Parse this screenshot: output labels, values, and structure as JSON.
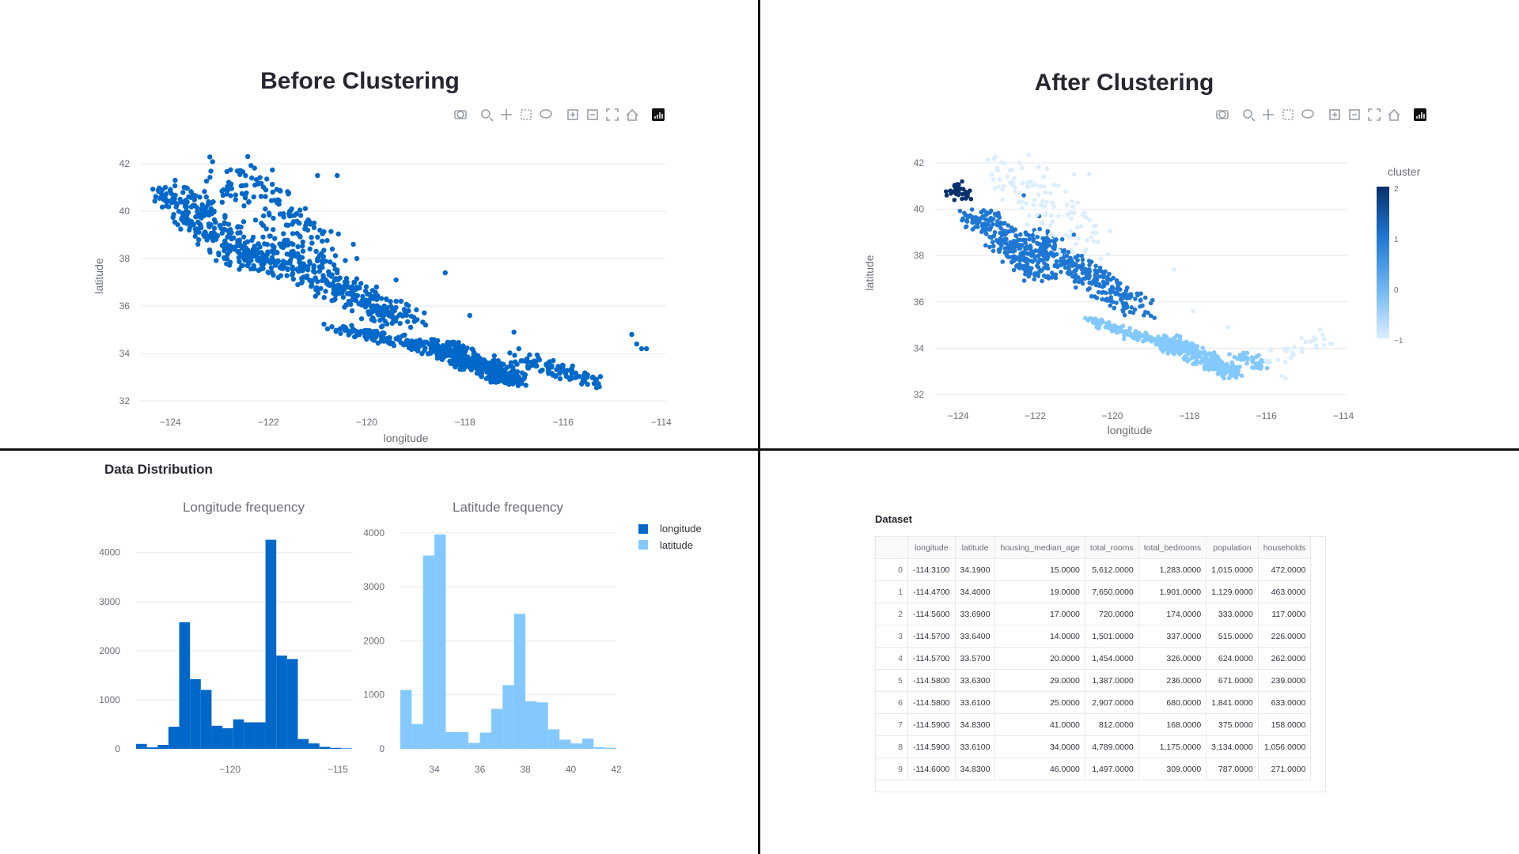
{
  "colors": {
    "primary": "#0068c9",
    "light": "#83c9ff",
    "dark": "#08306b",
    "mid": "#1f77d4"
  },
  "toolbar": {
    "icons": [
      "camera-icon",
      "zoom-icon",
      "pan-icon",
      "box-select-icon",
      "lasso-select-icon",
      "zoom-in-icon",
      "zoom-out-icon",
      "autoscale-icon",
      "reset-axes-icon",
      "plotly-logo-icon"
    ]
  },
  "before": {
    "title": "Before Clustering",
    "xlabel": "longitude",
    "ylabel": "latitude",
    "xticks": [
      "−124",
      "−122",
      "−120",
      "−118",
      "−116",
      "−114"
    ],
    "yticks": [
      "32",
      "34",
      "36",
      "38",
      "40",
      "42"
    ]
  },
  "after": {
    "title": "After Clustering",
    "xlabel": "longitude",
    "ylabel": "latitude",
    "xticks": [
      "−124",
      "−122",
      "−120",
      "−118",
      "−116",
      "−114"
    ],
    "yticks": [
      "32",
      "34",
      "36",
      "38",
      "40",
      "42"
    ],
    "colorbar_title": "cluster",
    "colorbar_ticks": [
      "2",
      "1",
      "0",
      "−1"
    ]
  },
  "distribution": {
    "section_title": "Data Distribution",
    "lon_title": "Longitude frequency",
    "lat_title": "Latitude frequency",
    "lon_xticks": [
      "−120",
      "−115"
    ],
    "lat_xticks": [
      "34",
      "36",
      "38",
      "40",
      "42"
    ],
    "lon_yticks": [
      "0",
      "1000",
      "2000",
      "3000",
      "4000"
    ],
    "lat_yticks": [
      "0",
      "1000",
      "2000",
      "3000",
      "4000"
    ],
    "legend": [
      "longitude",
      "latitude"
    ]
  },
  "chart_data": [
    {
      "type": "scatter",
      "title": "Before Clustering",
      "xlabel": "longitude",
      "ylabel": "latitude",
      "xlim": [
        -124.6,
        -113.9
      ],
      "ylim": [
        32,
        42
      ],
      "series": [
        {
          "name": "",
          "points": [
            [
              -124.2,
              40.8
            ],
            [
              -124.1,
              41.0
            ],
            [
              -123.9,
              41.3
            ],
            [
              -123.8,
              40.5
            ],
            [
              -123.6,
              39.5
            ],
            [
              -123.3,
              39.1
            ],
            [
              -123.2,
              38.9
            ],
            [
              -122.9,
              38.6
            ],
            [
              -122.7,
              38.4
            ],
            [
              -122.5,
              38.0
            ],
            [
              -122.4,
              37.8
            ],
            [
              -122.3,
              37.7
            ],
            [
              -122.2,
              37.5
            ],
            [
              -122.0,
              37.4
            ],
            [
              -121.9,
              37.3
            ],
            [
              -121.8,
              37.2
            ],
            [
              -121.7,
              37.6
            ],
            [
              -121.5,
              38.6
            ],
            [
              -121.4,
              38.5
            ],
            [
              -121.3,
              38.7
            ],
            [
              -121.2,
              39.2
            ],
            [
              -121.0,
              38.9
            ],
            [
              -120.9,
              37.8
            ],
            [
              -120.6,
              37.4
            ],
            [
              -120.4,
              37.0
            ],
            [
              -120.2,
              36.8
            ],
            [
              -119.8,
              36.8
            ],
            [
              -119.6,
              36.3
            ],
            [
              -119.3,
              36.2
            ],
            [
              -119.0,
              35.4
            ],
            [
              -118.8,
              35.2
            ],
            [
              -118.6,
              34.5
            ],
            [
              -118.4,
              34.1
            ],
            [
              -118.3,
              34.0
            ],
            [
              -118.2,
              34.0
            ],
            [
              -118.1,
              33.9
            ],
            [
              -118.0,
              33.8
            ],
            [
              -117.9,
              33.7
            ],
            [
              -117.8,
              33.7
            ],
            [
              -117.6,
              33.6
            ],
            [
              -117.4,
              33.9
            ],
            [
              -117.3,
              33.2
            ],
            [
              -117.2,
              32.8
            ],
            [
              -117.1,
              32.7
            ],
            [
              -117.0,
              32.9
            ],
            [
              -116.9,
              33.0
            ],
            [
              -116.5,
              33.8
            ],
            [
              -116.2,
              33.7
            ],
            [
              -115.6,
              32.8
            ],
            [
              -115.5,
              32.7
            ],
            [
              -114.6,
              34.8
            ],
            [
              -114.5,
              34.4
            ],
            [
              -114.4,
              34.2
            ],
            [
              -114.3,
              34.2
            ],
            [
              -121.0,
              41.5
            ],
            [
              -122.6,
              41.7
            ],
            [
              -120.6,
              41.5
            ],
            [
              -122.3,
              40.6
            ],
            [
              -121.9,
              39.7
            ],
            [
              -121.6,
              39.4
            ],
            [
              -122.1,
              39.8
            ],
            [
              -122.8,
              39.0
            ],
            [
              -120.7,
              38.4
            ],
            [
              -120.2,
              38.0
            ],
            [
              -119.4,
              37.1
            ],
            [
              -118.4,
              37.4
            ],
            [
              -117.9,
              35.6
            ],
            [
              -117.0,
              34.9
            ],
            [
              -116.9,
              34.2
            ],
            [
              -115.5,
              33.1
            ]
          ]
        }
      ]
    },
    {
      "type": "scatter",
      "title": "After Clustering",
      "xlabel": "longitude",
      "ylabel": "latitude",
      "xlim": [
        -124.6,
        -113.9
      ],
      "ylim": [
        32,
        42
      ],
      "colorbar": {
        "title": "cluster",
        "min": -1,
        "max": 2
      },
      "series": [
        {
          "name": "2",
          "points": [
            [
              -124.3,
              40.6
            ],
            [
              -124.2,
              40.8
            ],
            [
              -124.1,
              41.0
            ],
            [
              -124.0,
              40.9
            ],
            [
              -123.9,
              41.2
            ],
            [
              -123.8,
              40.5
            ],
            [
              -124.1,
              40.4
            ],
            [
              -123.7,
              40.8
            ]
          ]
        },
        {
          "name": "1",
          "points": [
            [
              -123.6,
              39.5
            ],
            [
              -123.3,
              39.1
            ],
            [
              -122.9,
              38.6
            ],
            [
              -122.7,
              38.4
            ],
            [
              -122.4,
              37.8
            ],
            [
              -122.2,
              37.5
            ],
            [
              -121.9,
              37.3
            ],
            [
              -121.5,
              38.6
            ],
            [
              -121.3,
              38.7
            ],
            [
              -121.0,
              38.9
            ],
            [
              -120.6,
              37.4
            ],
            [
              -120.2,
              36.8
            ],
            [
              -119.8,
              36.8
            ],
            [
              -119.6,
              36.3
            ],
            [
              -119.0,
              35.4
            ],
            [
              -121.9,
              39.7
            ],
            [
              -122.3,
              40.6
            ],
            [
              -120.9,
              37.8
            ]
          ]
        },
        {
          "name": "0",
          "points": [
            [
              -118.6,
              34.5
            ],
            [
              -118.4,
              34.1
            ],
            [
              -118.3,
              34.0
            ],
            [
              -118.2,
              34.0
            ],
            [
              -118.1,
              33.9
            ],
            [
              -117.9,
              33.7
            ],
            [
              -117.6,
              33.6
            ],
            [
              -117.3,
              33.2
            ],
            [
              -117.1,
              32.7
            ],
            [
              -116.9,
              33.0
            ],
            [
              -116.5,
              33.8
            ],
            [
              -116.2,
              33.7
            ],
            [
              -119.2,
              34.3
            ],
            [
              -119.7,
              34.4
            ],
            [
              -120.4,
              34.9
            ],
            [
              -120.7,
              35.3
            ]
          ]
        },
        {
          "name": "-1",
          "points": [
            [
              -122.6,
              41.7
            ],
            [
              -121.0,
              41.5
            ],
            [
              -120.6,
              41.5
            ],
            [
              -115.6,
              32.8
            ],
            [
              -115.5,
              32.7
            ],
            [
              -114.6,
              34.8
            ],
            [
              -114.5,
              34.4
            ],
            [
              -114.3,
              34.2
            ],
            [
              -117.9,
              35.6
            ],
            [
              -117.0,
              34.9
            ],
            [
              -118.4,
              37.4
            ]
          ]
        }
      ]
    },
    {
      "type": "bar",
      "title": "Longitude frequency",
      "x": [
        -124.1,
        -123.6,
        -123.1,
        -122.6,
        -122.1,
        -121.6,
        -121.1,
        -120.6,
        -120.1,
        -119.6,
        -119.1,
        -118.6,
        -118.1,
        -117.6,
        -117.1,
        -116.6,
        -116.1,
        -115.6,
        -115.1,
        -114.6
      ],
      "values": [
        100,
        30,
        80,
        450,
        2580,
        1420,
        1200,
        470,
        420,
        600,
        540,
        540,
        4260,
        1900,
        1830,
        200,
        110,
        40,
        20,
        10
      ],
      "xlim": [
        -124.35,
        -114.3
      ],
      "ylim": [
        0,
        4350
      ],
      "legend": "longitude"
    },
    {
      "type": "bar",
      "title": "Latitude frequency",
      "x": [
        32.75,
        33.25,
        33.75,
        34.25,
        34.75,
        35.25,
        35.75,
        36.25,
        36.75,
        37.25,
        37.75,
        38.25,
        38.75,
        39.25,
        39.75,
        40.25,
        40.75,
        41.25,
        41.75
      ],
      "values": [
        1090,
        460,
        3580,
        3970,
        310,
        310,
        110,
        300,
        740,
        1180,
        2500,
        880,
        860,
        360,
        170,
        100,
        190,
        30,
        20
      ],
      "xlim": [
        32.5,
        42
      ],
      "ylim": [
        0,
        4100
      ],
      "legend": "latitude"
    }
  ],
  "dataset": {
    "label": "Dataset",
    "columns": [
      "",
      "longitude",
      "latitude",
      "housing_median_age",
      "total_rooms",
      "total_bedrooms",
      "population",
      "households"
    ],
    "rows": [
      [
        "0",
        "-114.3100",
        "34.1900",
        "15.0000",
        "5,612.0000",
        "1,283.0000",
        "1,015.0000",
        "472.0000"
      ],
      [
        "1",
        "-114.4700",
        "34.4000",
        "19.0000",
        "7,650.0000",
        "1,901.0000",
        "1,129.0000",
        "463.0000"
      ],
      [
        "2",
        "-114.5600",
        "33.6900",
        "17.0000",
        "720.0000",
        "174.0000",
        "333.0000",
        "117.0000"
      ],
      [
        "3",
        "-114.5700",
        "33.6400",
        "14.0000",
        "1,501.0000",
        "337.0000",
        "515.0000",
        "226.0000"
      ],
      [
        "4",
        "-114.5700",
        "33.5700",
        "20.0000",
        "1,454.0000",
        "326.0000",
        "624.0000",
        "262.0000"
      ],
      [
        "5",
        "-114.5800",
        "33.6300",
        "29.0000",
        "1,387.0000",
        "236.0000",
        "671.0000",
        "239.0000"
      ],
      [
        "6",
        "-114.5800",
        "33.6100",
        "25.0000",
        "2,907.0000",
        "680.0000",
        "1,841.0000",
        "633.0000"
      ],
      [
        "7",
        "-114.5900",
        "34.8300",
        "41.0000",
        "812.0000",
        "168.0000",
        "375.0000",
        "158.0000"
      ],
      [
        "8",
        "-114.5900",
        "33.6100",
        "34.0000",
        "4,789.0000",
        "1,175.0000",
        "3,134.0000",
        "1,056.0000"
      ],
      [
        "9",
        "-114.6000",
        "34.8300",
        "46.0000",
        "1,497.0000",
        "309.0000",
        "787.0000",
        "271.0000"
      ]
    ]
  }
}
